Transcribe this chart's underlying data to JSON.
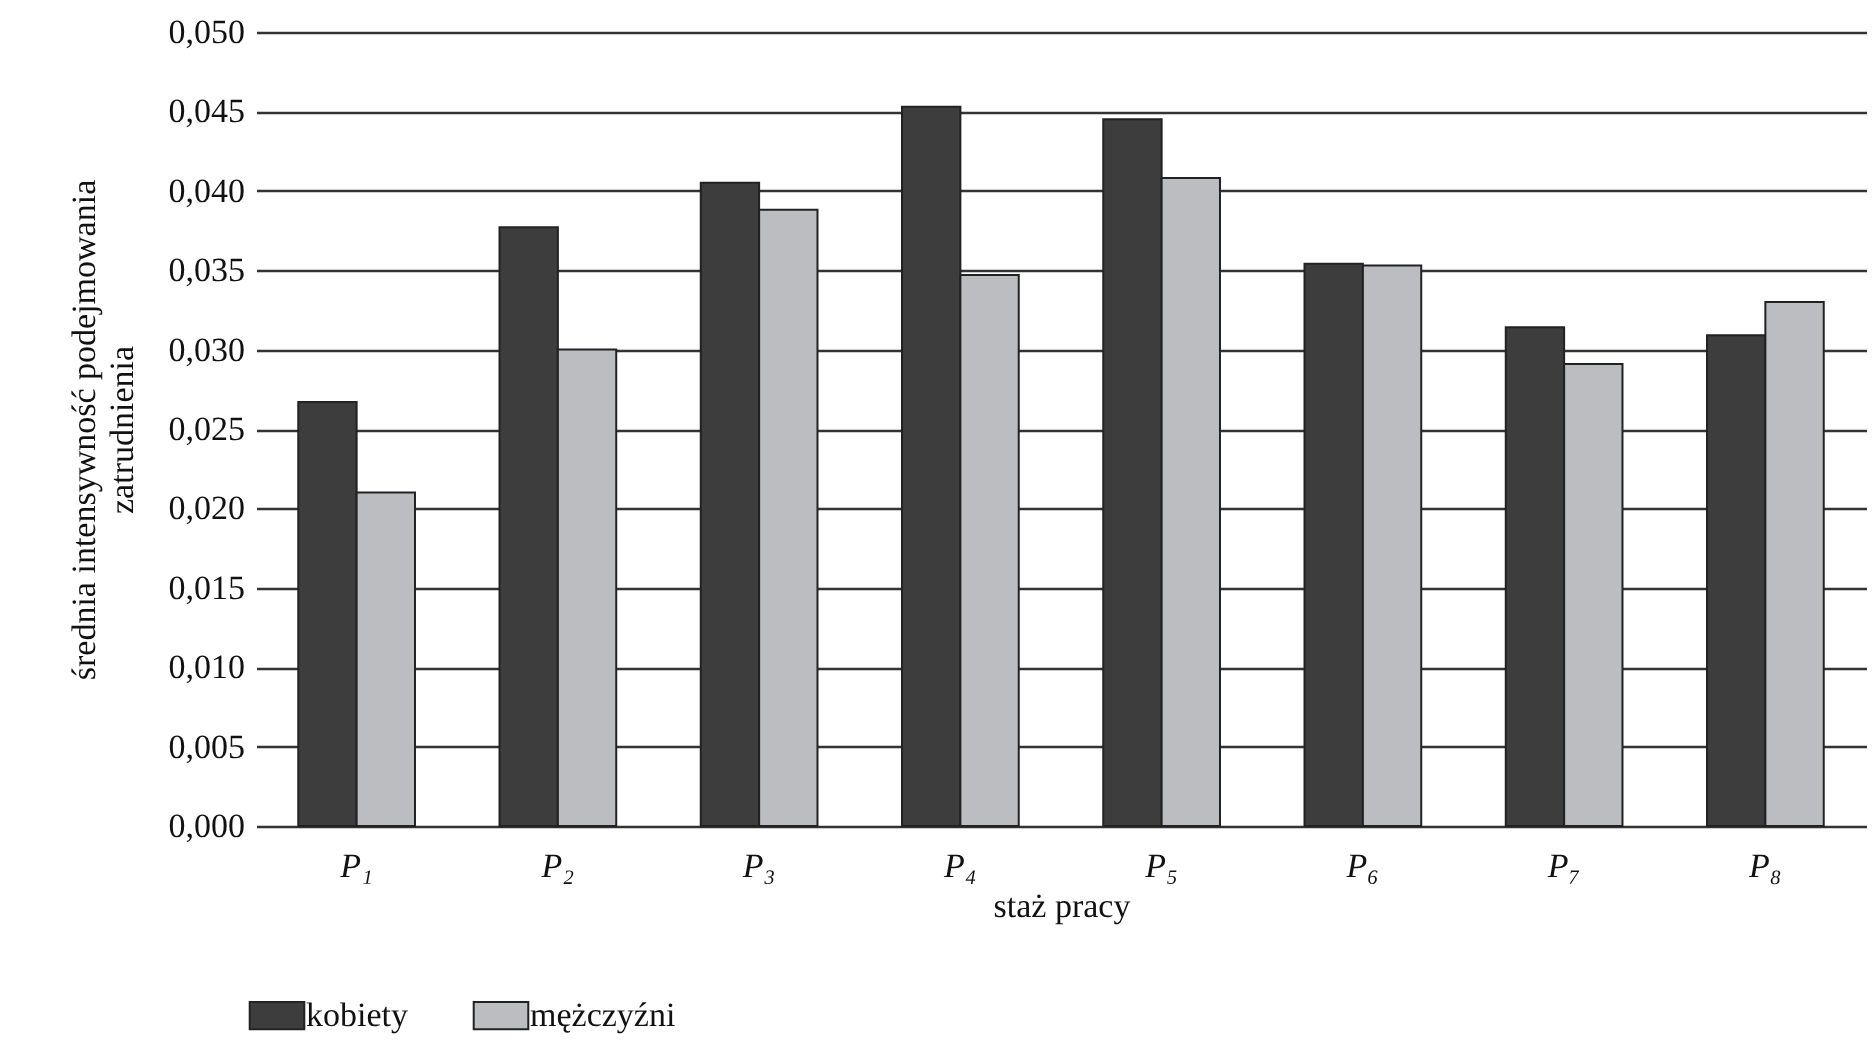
{
  "chart_data": {
    "type": "bar",
    "xlabel": "staż pracy",
    "ylabel": "średnia intensywność podejmowania\nzatrudnienia",
    "categories": [
      "P₁",
      "P₂",
      "P₃",
      "P₄",
      "P₅",
      "P₆",
      "P₇",
      "P₈"
    ],
    "series": [
      {
        "name": "kobiety",
        "color": "#3d3d3d",
        "values": [
          0.0267,
          0.0377,
          0.0405,
          0.0453,
          0.0445,
          0.0354,
          0.0314,
          0.0309
        ]
      },
      {
        "name": "mężczyźni",
        "color": "#bcbdc1",
        "values": [
          0.021,
          0.03,
          0.0388,
          0.0347,
          0.0408,
          0.0353,
          0.0291,
          0.033
        ]
      }
    ],
    "ylim": [
      0,
      0.05
    ],
    "yticks": [
      {
        "value": 0,
        "label": "0,000"
      },
      {
        "value": 0.005,
        "label": "0,005"
      },
      {
        "value": 0.01,
        "label": "0,010"
      },
      {
        "value": 0.015,
        "label": "0,015"
      },
      {
        "value": 0.02,
        "label": "0,020"
      },
      {
        "value": 0.025,
        "label": "0,025"
      },
      {
        "value": 0.03,
        "label": "0,030"
      },
      {
        "value": 0.035,
        "label": "0,035"
      },
      {
        "value": 0.04,
        "label": "0,040"
      },
      {
        "value": 0.045,
        "label": "0,045"
      },
      {
        "value": 0.05,
        "label": "0,050"
      }
    ],
    "grid": "y",
    "legend": "bottom"
  }
}
